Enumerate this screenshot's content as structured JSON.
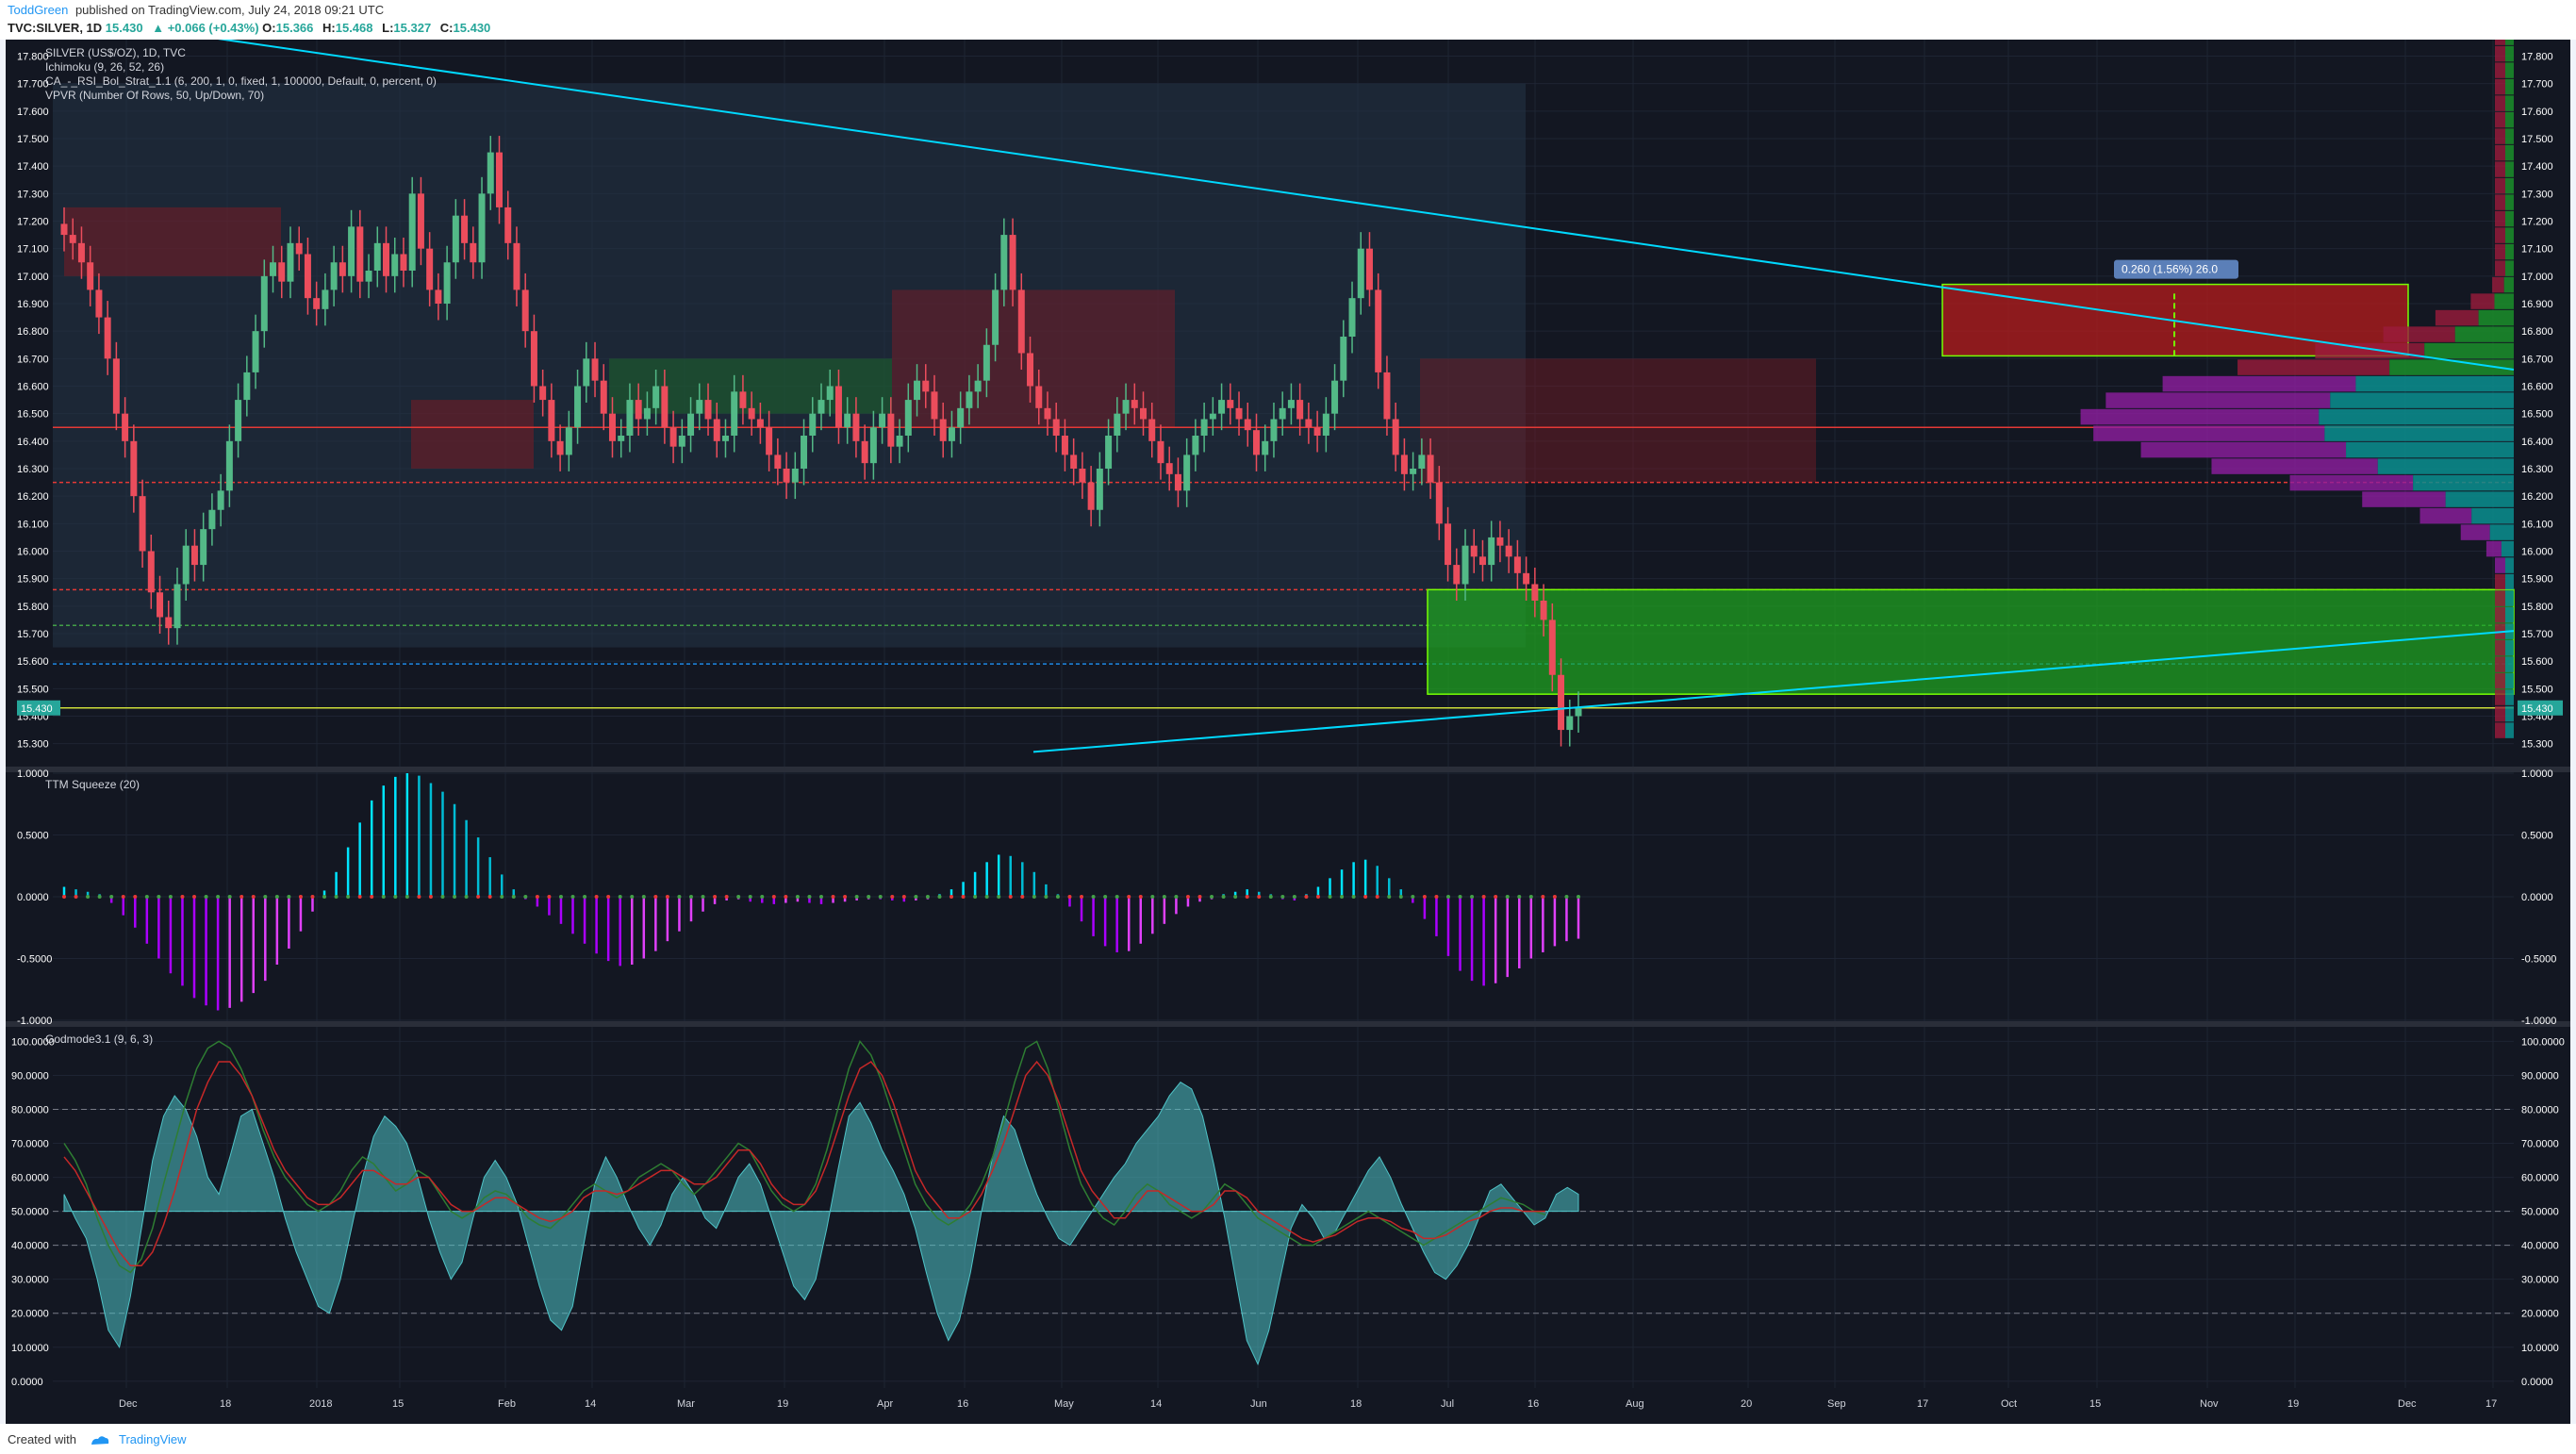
{
  "header": {
    "author": "ToddGreen",
    "published_text": "published on TradingView.com, July 24, 2018 09:21 UTC",
    "symbol_line": "TVC:SILVER, 1D",
    "last": "15.430",
    "change": "+0.066 (+0.43%)",
    "o_label": "O:",
    "o": "15.366",
    "h_label": "H:",
    "h": "15.468",
    "l_label": "L:",
    "l": "15.327",
    "c_label": "C:",
    "c": "15.430"
  },
  "footer": {
    "created_with": "Created with",
    "brand": "TradingView"
  },
  "colors": {
    "background": "#131722",
    "grid": "#1e2433",
    "axis_text": "#ffffff",
    "up_candle": "#53b987",
    "down_candle": "#eb4d5c",
    "trendline": "#00d9ff",
    "cloud_red": "#7a1c25",
    "cloud_green": "#1b6b2a",
    "volume_up": "#0a8f8f",
    "volume_down": "#9b1c3c",
    "volume_purple": "#8e1ea0",
    "price_badge": "#26a69a"
  },
  "chart_data": [
    {
      "type": "candlestick",
      "title": "SILVER (US$/OZ), 1D, TVC",
      "legend": [
        "SILVER (US$/OZ), 1D, TVC",
        "Ichimoku (9, 26, 52, 26)",
        "CA_-_RSI_Bol_Strat_1.1 (6, 200, 1, 0, fixed, 1, 100000, Default, 0, percent, 0)",
        "VPVR (Number Of Rows, 50, Up/Down, 70)"
      ],
      "ylim": [
        15.22,
        17.86
      ],
      "y_ticks": [
        "17.800",
        "17.700",
        "17.600",
        "17.500",
        "17.400",
        "17.300",
        "17.200",
        "17.100",
        "17.000",
        "16.900",
        "16.800",
        "16.700",
        "16.600",
        "16.500",
        "16.400",
        "16.300",
        "16.200",
        "16.100",
        "16.000",
        "15.900",
        "15.800",
        "15.700",
        "15.600",
        "15.500",
        "15.400",
        "15.300"
      ],
      "current_price_badge": "15.430",
      "x_labels": [
        "Dec",
        "18",
        "2018",
        "15",
        "Feb",
        "14",
        "Mar",
        "19",
        "Apr",
        "16",
        "May",
        "14",
        "Jun",
        "18",
        "Jul",
        "16",
        "Aug",
        "20",
        "Sep",
        "17",
        "Oct",
        "15",
        "Nov",
        "19",
        "Dec",
        "17"
      ],
      "close": [
        17.15,
        17.12,
        17.05,
        16.95,
        16.85,
        16.7,
        16.5,
        16.4,
        16.2,
        16.0,
        15.85,
        15.76,
        15.72,
        15.88,
        16.02,
        15.95,
        16.08,
        16.15,
        16.22,
        16.4,
        16.55,
        16.65,
        16.8,
        17.0,
        17.05,
        16.98,
        17.12,
        17.08,
        16.92,
        16.88,
        16.95,
        17.05,
        17.0,
        17.18,
        16.98,
        17.02,
        17.12,
        17.0,
        17.08,
        17.02,
        17.3,
        17.1,
        16.95,
        16.9,
        17.05,
        17.22,
        17.12,
        17.05,
        17.3,
        17.45,
        17.25,
        17.12,
        16.95,
        16.8,
        16.6,
        16.55,
        16.4,
        16.35,
        16.45,
        16.6,
        16.7,
        16.62,
        16.5,
        16.4,
        16.42,
        16.55,
        16.48,
        16.52,
        16.6,
        16.45,
        16.38,
        16.42,
        16.5,
        16.55,
        16.48,
        16.4,
        16.42,
        16.58,
        16.52,
        16.48,
        16.45,
        16.35,
        16.3,
        16.25,
        16.3,
        16.42,
        16.5,
        16.55,
        16.6,
        16.45,
        16.5,
        16.4,
        16.32,
        16.45,
        16.5,
        16.38,
        16.42,
        16.55,
        16.62,
        16.58,
        16.48,
        16.4,
        16.45,
        16.52,
        16.58,
        16.62,
        16.75,
        16.95,
        17.15,
        16.95,
        16.72,
        16.6,
        16.52,
        16.48,
        16.42,
        16.35,
        16.3,
        16.25,
        16.15,
        16.3,
        16.42,
        16.5,
        16.55,
        16.52,
        16.48,
        16.4,
        16.32,
        16.28,
        16.22,
        16.35,
        16.42,
        16.48,
        16.5,
        16.55,
        16.52,
        16.48,
        16.44,
        16.35,
        16.4,
        16.48,
        16.52,
        16.55,
        16.48,
        16.45,
        16.42,
        16.5,
        16.62,
        16.78,
        16.92,
        17.1,
        16.95,
        16.65,
        16.48,
        16.35,
        16.28,
        16.3,
        16.35,
        16.25,
        16.1,
        15.95,
        15.88,
        16.02,
        15.98,
        15.95,
        16.05,
        16.02,
        15.98,
        15.92,
        15.88,
        15.82,
        15.75,
        15.55,
        15.35,
        15.4,
        15.43
      ],
      "current_close": 15.43,
      "trendlines": [
        {
          "from": 16.72,
          "to": 16.66
        },
        {
          "from": 15.27,
          "to": 15.71
        }
      ],
      "zones": [
        {
          "label": "resistance",
          "from": 16.71,
          "to": 16.97
        },
        {
          "label": "support",
          "from": 15.48,
          "to": 15.86
        }
      ],
      "measure_label": "0.260 (1.56%) 26.0"
    },
    {
      "type": "bar",
      "title": "TTM Squeeze (20)",
      "ylim": [
        -1.0,
        1.0
      ],
      "y_ticks": [
        "1.0000",
        "0.5000",
        "0.0000",
        "-0.5000",
        "-1.0000"
      ],
      "values": [
        0.08,
        0.06,
        0.04,
        0.02,
        -0.05,
        -0.15,
        -0.25,
        -0.38,
        -0.5,
        -0.62,
        -0.72,
        -0.82,
        -0.88,
        -0.92,
        -0.9,
        -0.85,
        -0.78,
        -0.68,
        -0.55,
        -0.42,
        -0.28,
        -0.12,
        0.05,
        0.2,
        0.4,
        0.6,
        0.78,
        0.9,
        0.97,
        1.0,
        0.98,
        0.92,
        0.85,
        0.75,
        0.62,
        0.48,
        0.32,
        0.18,
        0.06,
        -0.02,
        -0.08,
        -0.15,
        -0.22,
        -0.3,
        -0.38,
        -0.46,
        -0.52,
        -0.56,
        -0.55,
        -0.5,
        -0.44,
        -0.36,
        -0.28,
        -0.2,
        -0.12,
        -0.06,
        -0.03,
        -0.02,
        -0.04,
        -0.05,
        -0.06,
        -0.05,
        -0.04,
        -0.05,
        -0.06,
        -0.05,
        -0.04,
        -0.03,
        -0.02,
        -0.02,
        -0.03,
        -0.04,
        -0.03,
        -0.02,
        0.02,
        0.06,
        0.12,
        0.2,
        0.28,
        0.34,
        0.33,
        0.28,
        0.2,
        0.1,
        0.02,
        -0.08,
        -0.2,
        -0.32,
        -0.4,
        -0.45,
        -0.44,
        -0.38,
        -0.3,
        -0.22,
        -0.14,
        -0.08,
        -0.04,
        -0.02,
        0.02,
        0.04,
        0.06,
        0.04,
        0.02,
        -0.02,
        -0.03,
        0.02,
        0.08,
        0.15,
        0.22,
        0.28,
        0.3,
        0.25,
        0.15,
        0.06,
        -0.05,
        -0.18,
        -0.32,
        -0.48,
        -0.6,
        -0.68,
        -0.72,
        -0.7,
        -0.65,
        -0.58,
        -0.5,
        -0.45,
        -0.4,
        -0.36,
        -0.34
      ]
    },
    {
      "type": "area",
      "title": "Godmode3.1 (9, 6, 3)",
      "ylim": [
        -2,
        104
      ],
      "y_ticks": [
        "100.0000",
        "90.0000",
        "80.0000",
        "70.0000",
        "60.0000",
        "50.0000",
        "40.0000",
        "30.0000",
        "20.0000",
        "10.0000",
        "0.0000"
      ],
      "reference_lines": [
        80,
        50,
        40,
        20
      ],
      "osc": [
        55,
        48,
        42,
        30,
        15,
        10,
        25,
        45,
        65,
        78,
        84,
        80,
        72,
        60,
        55,
        66,
        78,
        80,
        70,
        60,
        48,
        38,
        30,
        22,
        20,
        30,
        45,
        60,
        72,
        78,
        75,
        70,
        60,
        48,
        38,
        30,
        35,
        48,
        60,
        65,
        60,
        52,
        40,
        28,
        18,
        15,
        22,
        40,
        58,
        66,
        60,
        52,
        45,
        40,
        46,
        55,
        60,
        55,
        48,
        45,
        52,
        60,
        64,
        58,
        48,
        38,
        28,
        24,
        30,
        45,
        62,
        78,
        82,
        76,
        68,
        62,
        55,
        45,
        32,
        20,
        12,
        18,
        32,
        50,
        66,
        78,
        74,
        64,
        55,
        48,
        42,
        40,
        45,
        50,
        55,
        60,
        64,
        70,
        74,
        78,
        84,
        88,
        86,
        78,
        64,
        48,
        30,
        12,
        5,
        15,
        30,
        45,
        52,
        48,
        42,
        44,
        50,
        56,
        62,
        66,
        60,
        52,
        45,
        38,
        32,
        30,
        34,
        40,
        48,
        56,
        58,
        54,
        50,
        46,
        48,
        55,
        57,
        55
      ],
      "fast": [
        70,
        65,
        58,
        48,
        40,
        34,
        32,
        36,
        45,
        58,
        70,
        82,
        92,
        98,
        100,
        98,
        92,
        84,
        74,
        66,
        60,
        56,
        52,
        50,
        52,
        56,
        62,
        66,
        64,
        60,
        56,
        58,
        62,
        60,
        55,
        50,
        48,
        50,
        54,
        56,
        55,
        52,
        48,
        46,
        45,
        48,
        52,
        56,
        58,
        56,
        54,
        56,
        60,
        62,
        64,
        62,
        58,
        55,
        58,
        62,
        66,
        70,
        68,
        62,
        56,
        52,
        50,
        52,
        58,
        68,
        80,
        92,
        100,
        96,
        88,
        78,
        68,
        58,
        52,
        48,
        46,
        48,
        52,
        58,
        66,
        76,
        88,
        98,
        100,
        92,
        80,
        68,
        58,
        52,
        48,
        46,
        50,
        55,
        58,
        56,
        52,
        50,
        48,
        50,
        54,
        58,
        56,
        52,
        48,
        46,
        44,
        42,
        40,
        40,
        42,
        44,
        46,
        48,
        50,
        48,
        46,
        44,
        42,
        40,
        42,
        44,
        46,
        48,
        50,
        52,
        54,
        53,
        52,
        50,
        49
      ],
      "slow": [
        66,
        62,
        56,
        50,
        44,
        38,
        34,
        34,
        38,
        46,
        56,
        68,
        80,
        88,
        94,
        94,
        90,
        84,
        76,
        68,
        62,
        58,
        54,
        52,
        52,
        54,
        58,
        62,
        62,
        60,
        58,
        58,
        60,
        60,
        56,
        52,
        50,
        50,
        52,
        54,
        54,
        52,
        50,
        48,
        47,
        48,
        50,
        54,
        56,
        56,
        55,
        56,
        58,
        60,
        62,
        62,
        60,
        58,
        58,
        60,
        64,
        68,
        68,
        64,
        58,
        54,
        52,
        52,
        56,
        64,
        74,
        84,
        92,
        94,
        90,
        82,
        72,
        62,
        56,
        52,
        48,
        48,
        50,
        55,
        62,
        70,
        80,
        90,
        94,
        90,
        82,
        72,
        62,
        56,
        52,
        48,
        48,
        52,
        56,
        56,
        54,
        52,
        50,
        50,
        52,
        56,
        56,
        54,
        50,
        48,
        46,
        44,
        42,
        41,
        42,
        43,
        45,
        47,
        48,
        48,
        47,
        45,
        44,
        42,
        42,
        43,
        45,
        47,
        48,
        50,
        51,
        51,
        50,
        50,
        50
      ]
    }
  ]
}
